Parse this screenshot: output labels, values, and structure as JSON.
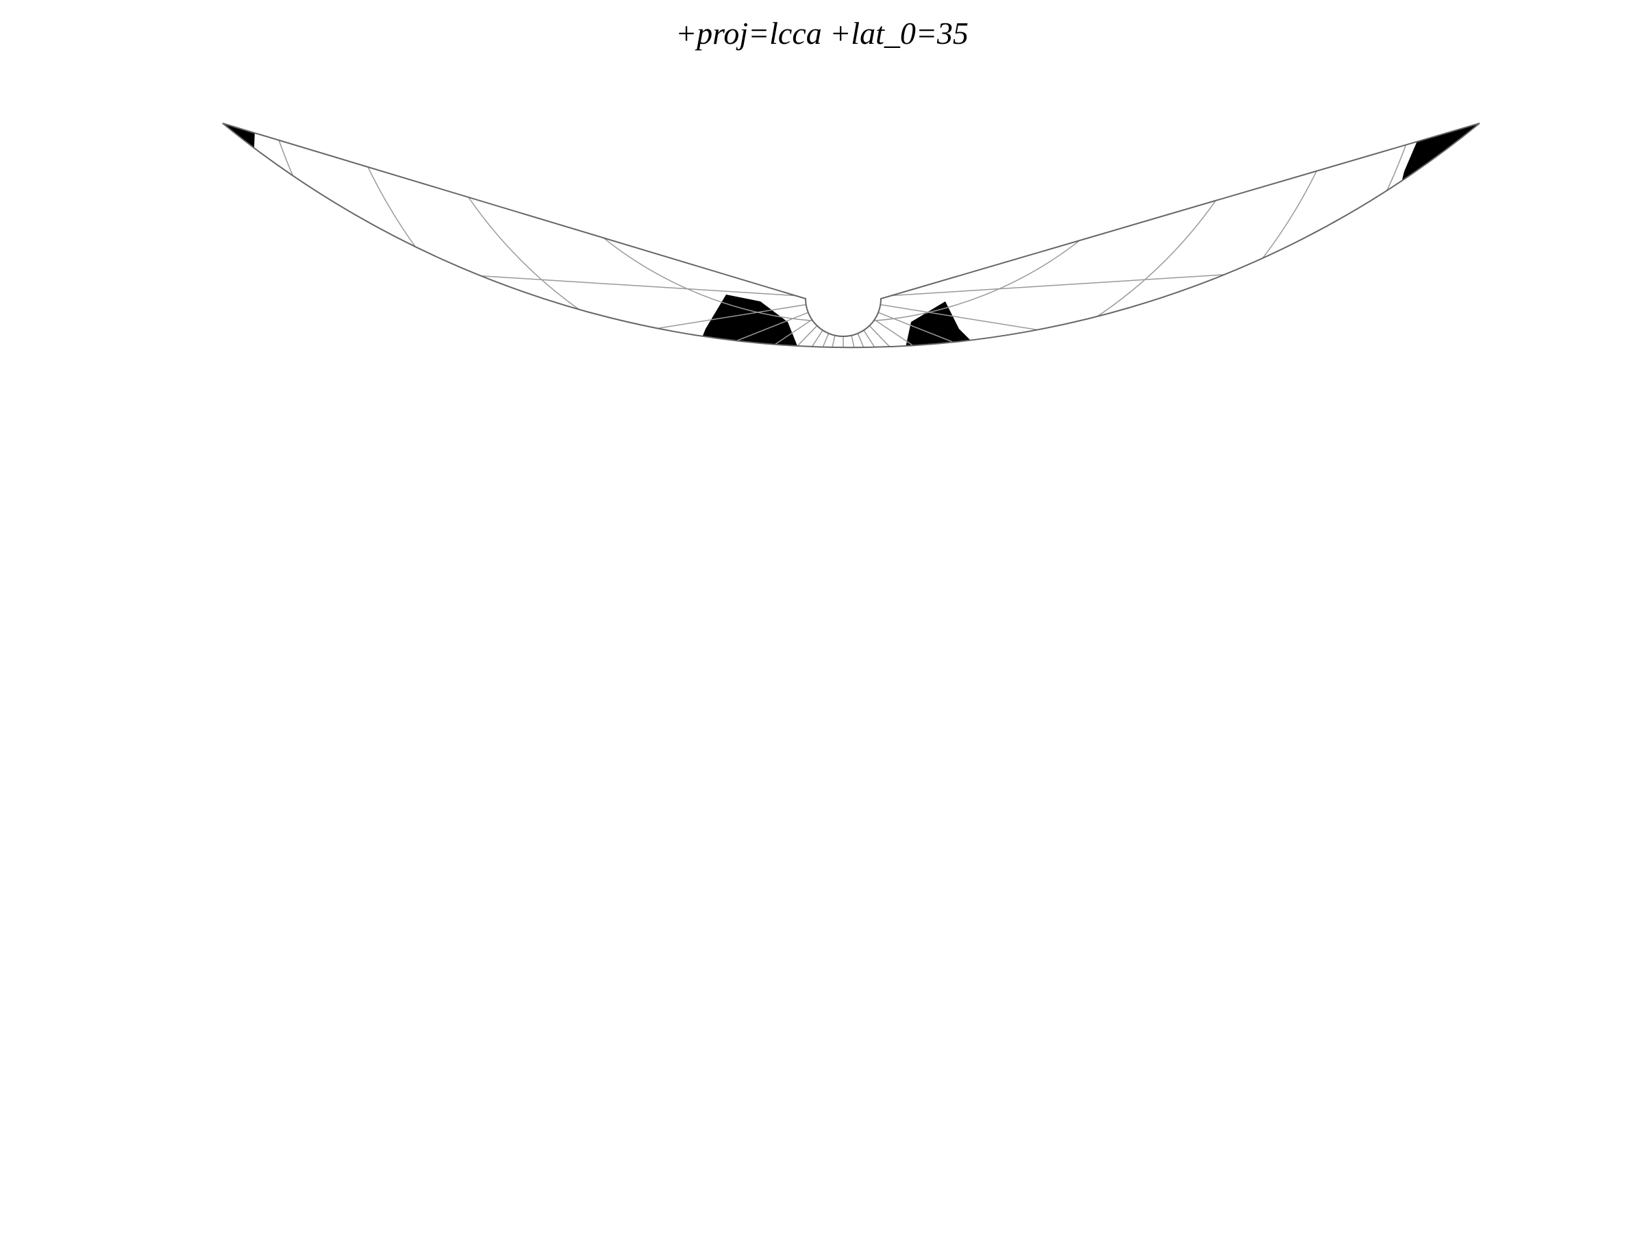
{
  "title": "+proj=lcca +lat_0=35",
  "map": {
    "projection": "Lambert Conformal Conic Alternative",
    "lat_0": 35,
    "land_color": "#000000",
    "ocean_color": "#ffffff",
    "graticule_color": "#999999",
    "graticule": true
  }
}
